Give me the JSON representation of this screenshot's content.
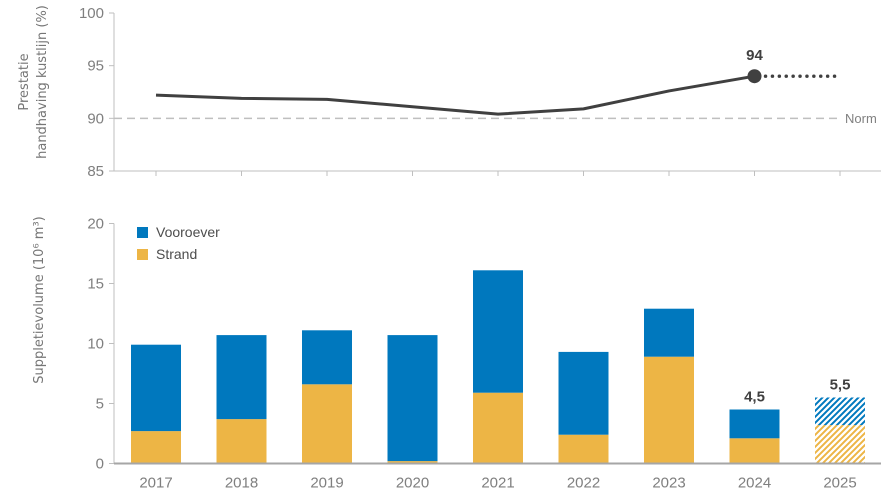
{
  "theme": {
    "background": "#FFFFFF",
    "axis": "#BFBFBF",
    "baseline": "#A6A6A6",
    "tick_text": "#7F7F7F",
    "label_text": "#404040",
    "norm_text": "#808080",
    "legend_text": "#4D4D4D"
  },
  "chart_data": [
    {
      "type": "line",
      "title": "",
      "ylabel": "Prestatie handhaving kustlijn (%)",
      "ylabel_lines": [
        "Prestatie",
        "handhaving kustlijn (%)"
      ],
      "x": [
        2017,
        2018,
        2019,
        2020,
        2021,
        2022,
        2023,
        2024
      ],
      "values": [
        92.2,
        91.9,
        91.8,
        91.1,
        90.4,
        90.9,
        92.6,
        94
      ],
      "ylim": [
        85,
        100
      ],
      "yticks": [
        85,
        90,
        95,
        100
      ],
      "xlim": [
        2017,
        2025
      ],
      "grid": false,
      "line_color": "#404040",
      "norm": {
        "value": 90,
        "label": "Norm"
      },
      "last_point_label": "94",
      "projection": {
        "from": 2024,
        "to": 2025,
        "value": 94,
        "style": "dotted"
      }
    },
    {
      "type": "bar",
      "stacked": true,
      "ylabel": "Suppletievolume (10⁶ m³)",
      "categories": [
        "2017",
        "2018",
        "2019",
        "2020",
        "2021",
        "2022",
        "2023",
        "2024",
        "2025"
      ],
      "series": [
        {
          "name": "Vooroever",
          "color": "#0078BE",
          "values": [
            7.2,
            7.0,
            4.5,
            10.5,
            10.2,
            6.9,
            4.0,
            2.4,
            2.3
          ]
        },
        {
          "name": "Strand",
          "color": "#EDB545",
          "values": [
            2.7,
            3.7,
            6.6,
            0.2,
            5.9,
            2.4,
            8.9,
            2.1,
            3.2
          ]
        }
      ],
      "totals": [
        9.9,
        10.7,
        11.1,
        10.7,
        16.1,
        9.3,
        12.9,
        4.5,
        5.5
      ],
      "bar_labels": [
        "",
        "",
        "",
        "",
        "",
        "",
        "",
        "4,5",
        "5,5"
      ],
      "hatched_categories": [
        "2025"
      ],
      "ylim": [
        0,
        20
      ],
      "yticks": [
        0,
        5,
        10,
        15,
        20
      ],
      "legend_position": "top-left"
    }
  ]
}
